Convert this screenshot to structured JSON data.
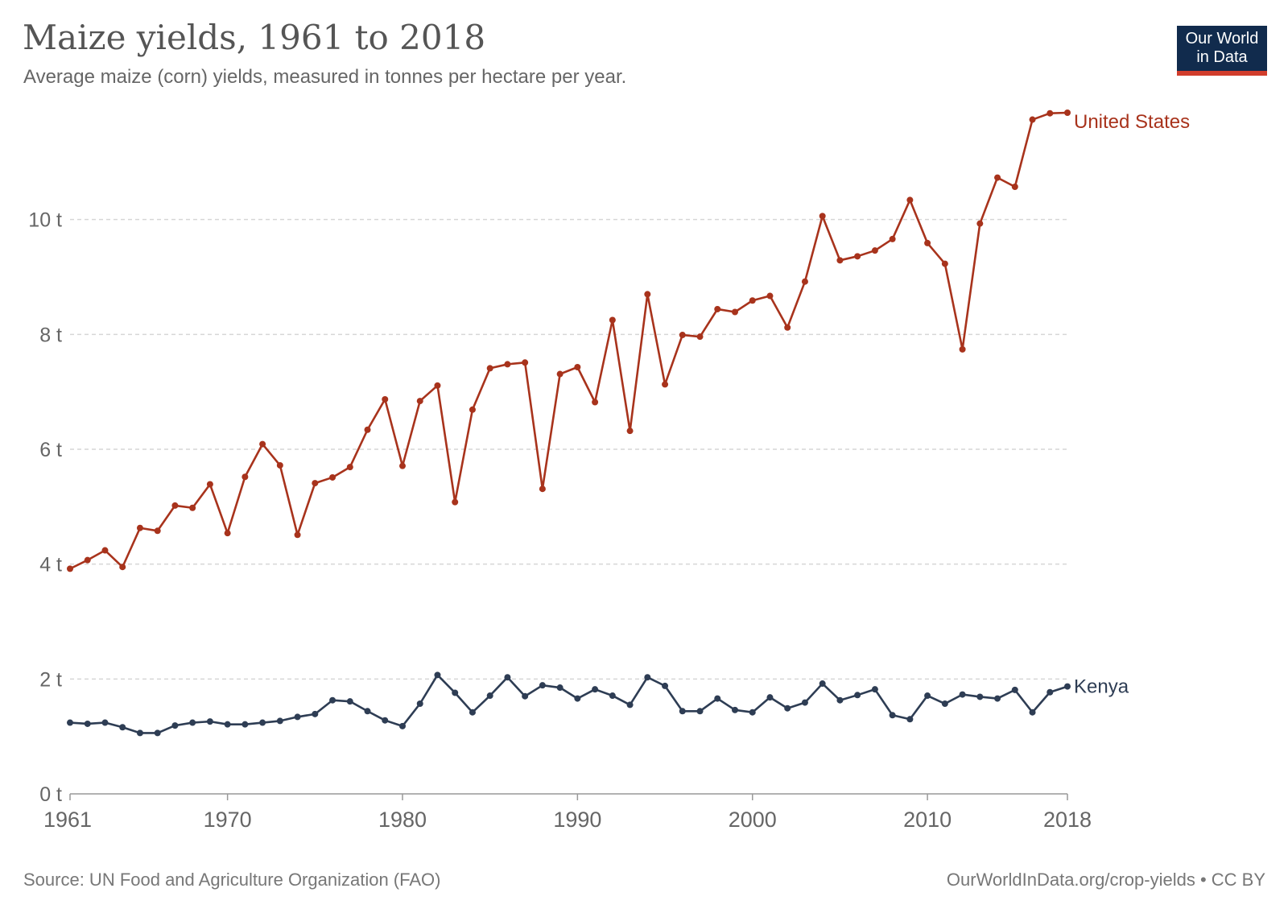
{
  "header": {
    "title": "Maize yields, 1961 to 2018",
    "subtitle": "Average maize (corn) yields, measured in tonnes per hectare per year."
  },
  "logo": {
    "line1": "Our World",
    "line2": "in Data",
    "bg_color": "#112b4d",
    "accent_color": "#d13d2c"
  },
  "footer": {
    "source": "Source: UN Food and Agriculture Organization (FAO)",
    "credit": "OurWorldInData.org/crop-yields • CC BY"
  },
  "chart_data": {
    "type": "line",
    "title": "Maize yields, 1961 to 2018",
    "subtitle": "Average maize (corn) yields, measured in tonnes per hectare per year.",
    "xlabel": "",
    "ylabel": "",
    "xlim": [
      1961,
      2018
    ],
    "ylim": [
      0,
      12
    ],
    "x_ticks": [
      {
        "value": 1961,
        "label": "1961"
      },
      {
        "value": 1970,
        "label": "1970"
      },
      {
        "value": 1980,
        "label": "1980"
      },
      {
        "value": 1990,
        "label": "1990"
      },
      {
        "value": 2000,
        "label": "2000"
      },
      {
        "value": 2010,
        "label": "2010"
      },
      {
        "value": 2018,
        "label": "2018"
      }
    ],
    "y_ticks": [
      {
        "value": 0,
        "label": "0 t"
      },
      {
        "value": 2,
        "label": "2 t"
      },
      {
        "value": 4,
        "label": "4 t"
      },
      {
        "value": 6,
        "label": "6 t"
      },
      {
        "value": 8,
        "label": "8 t"
      },
      {
        "value": 10,
        "label": "10 t"
      }
    ],
    "grid": true,
    "legend": "inline-right",
    "series": [
      {
        "name": "United States",
        "color": "#a8331c",
        "x": [
          1961,
          1962,
          1963,
          1964,
          1965,
          1966,
          1967,
          1968,
          1969,
          1970,
          1971,
          1972,
          1973,
          1974,
          1975,
          1976,
          1977,
          1978,
          1979,
          1980,
          1981,
          1982,
          1983,
          1984,
          1985,
          1986,
          1987,
          1988,
          1989,
          1990,
          1991,
          1992,
          1993,
          1994,
          1995,
          1996,
          1997,
          1998,
          1999,
          2000,
          2001,
          2002,
          2003,
          2004,
          2005,
          2006,
          2007,
          2008,
          2009,
          2010,
          2011,
          2012,
          2013,
          2014,
          2015,
          2016,
          2017,
          2018
        ],
        "values": [
          3.92,
          4.07,
          4.24,
          3.95,
          4.63,
          4.58,
          5.02,
          4.98,
          5.39,
          4.54,
          5.52,
          6.09,
          5.72,
          4.51,
          5.41,
          5.51,
          5.69,
          6.34,
          6.87,
          5.71,
          6.84,
          7.11,
          5.08,
          6.69,
          7.41,
          7.48,
          7.51,
          5.31,
          7.31,
          7.43,
          6.82,
          8.25,
          6.32,
          8.7,
          7.13,
          7.99,
          7.96,
          8.44,
          8.39,
          8.59,
          8.67,
          8.12,
          8.92,
          10.06,
          9.29,
          9.36,
          9.46,
          9.66,
          10.34,
          9.59,
          9.23,
          7.74,
          9.93,
          10.73,
          10.57,
          11.74,
          11.85,
          11.86
        ]
      },
      {
        "name": "Kenya",
        "color": "#2e3d54",
        "x": [
          1961,
          1962,
          1963,
          1964,
          1965,
          1966,
          1967,
          1968,
          1969,
          1970,
          1971,
          1972,
          1973,
          1974,
          1975,
          1976,
          1977,
          1978,
          1979,
          1980,
          1981,
          1982,
          1983,
          1984,
          1985,
          1986,
          1987,
          1988,
          1989,
          1990,
          1991,
          1992,
          1993,
          1994,
          1995,
          1996,
          1997,
          1998,
          1999,
          2000,
          2001,
          2002,
          2003,
          2004,
          2005,
          2006,
          2007,
          2008,
          2009,
          2010,
          2011,
          2012,
          2013,
          2014,
          2015,
          2016,
          2017,
          2018
        ],
        "values": [
          1.24,
          1.22,
          1.24,
          1.16,
          1.06,
          1.06,
          1.19,
          1.24,
          1.26,
          1.21,
          1.21,
          1.24,
          1.27,
          1.34,
          1.39,
          1.63,
          1.61,
          1.44,
          1.28,
          1.18,
          1.57,
          2.07,
          1.76,
          1.42,
          1.71,
          2.03,
          1.7,
          1.89,
          1.85,
          1.66,
          1.82,
          1.71,
          1.55,
          2.03,
          1.88,
          1.44,
          1.44,
          1.66,
          1.46,
          1.42,
          1.68,
          1.49,
          1.59,
          1.92,
          1.63,
          1.72,
          1.82,
          1.37,
          1.3,
          1.71,
          1.57,
          1.73,
          1.69,
          1.66,
          1.81,
          1.42,
          1.77,
          1.87
        ]
      }
    ]
  }
}
